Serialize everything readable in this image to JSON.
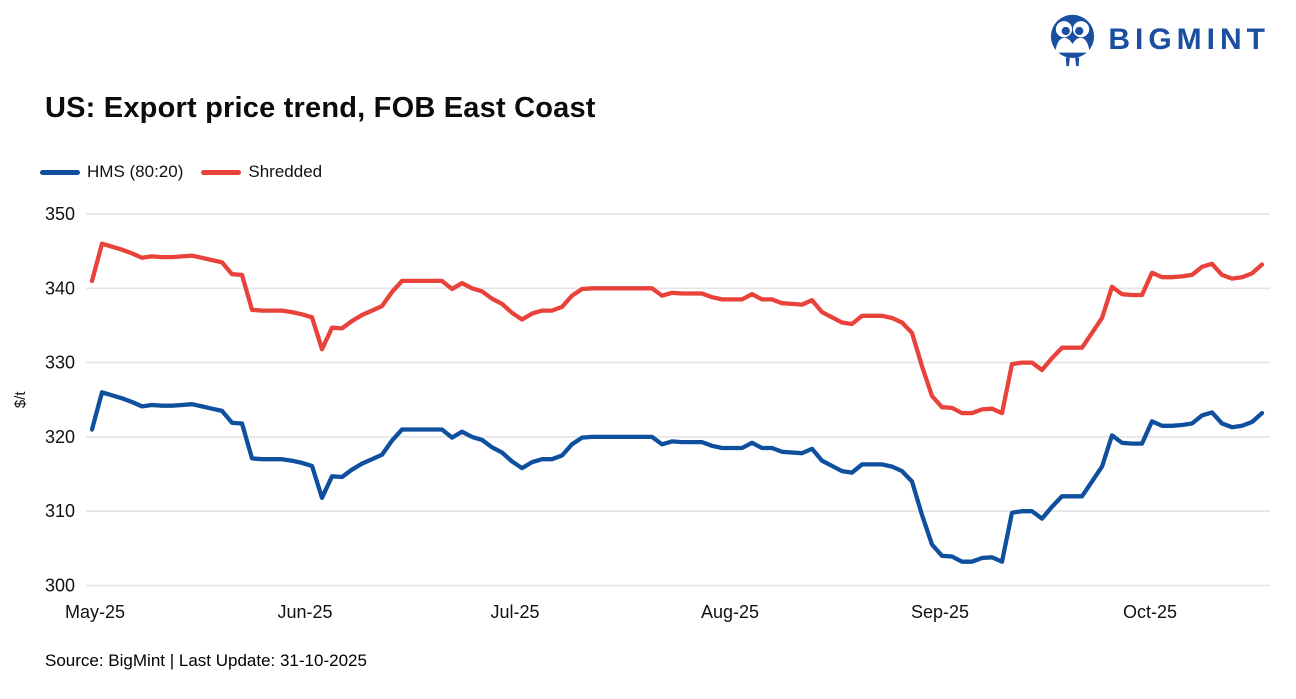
{
  "brand": {
    "name": "BIGMINT",
    "color": "#1a4fa0"
  },
  "page": {
    "title": "US: Export price trend, FOB East Coast",
    "source_note": "Source: BigMint | Last Update: 31-10-2025"
  },
  "legend": {
    "items": [
      {
        "label": "HMS (80:20)",
        "color": "#0f509e"
      },
      {
        "label": "Shredded",
        "color": "#e8423b"
      }
    ]
  },
  "chart_data": {
    "type": "line",
    "title": "US: Export price trend, FOB East Coast",
    "xlabel": "",
    "ylabel": "$/t",
    "ylim": [
      300,
      350
    ],
    "yticks": [
      300,
      310,
      320,
      330,
      340,
      350
    ],
    "x_tick_labels": [
      "May-25",
      "Jun-25",
      "Jul-25",
      "Aug-25",
      "Sep-25",
      "Oct-25"
    ],
    "x_tick_positions": [
      0.3,
      21.3,
      42.3,
      63.8,
      84.8,
      105.8
    ],
    "grid": "horizontal-only",
    "legend_position": "top-left",
    "gridline_color": "#e4e4e4",
    "series": [
      {
        "name": "HMS (80:20)",
        "color": "#0f509e",
        "values": [
          321,
          326,
          325.6,
          325.2,
          324.7,
          324.1,
          324.3,
          324.2,
          324.2,
          324.3,
          324.4,
          324.1,
          323.8,
          323.5,
          321.9,
          321.8,
          317.1,
          317,
          317,
          317,
          316.8,
          316.5,
          316.1,
          311.8,
          314.7,
          314.6,
          315.6,
          316.4,
          317,
          317.6,
          319.5,
          321,
          321,
          321,
          321,
          321,
          319.9,
          320.7,
          320,
          319.6,
          318.6,
          317.9,
          316.7,
          315.8,
          316.6,
          317,
          317,
          317.5,
          319,
          319.9,
          320,
          320,
          320,
          320,
          320,
          320,
          320,
          319,
          319.4,
          319.3,
          319.3,
          319.3,
          318.8,
          318.5,
          318.5,
          318.5,
          319.2,
          318.5,
          318.5,
          318,
          317.9,
          317.8,
          318.4,
          316.8,
          316.1,
          315.4,
          315.2,
          316.3,
          316.3,
          316.3,
          316,
          315.4,
          314,
          309.5,
          305.5,
          304,
          303.9,
          303.2,
          303.2,
          303.7,
          303.8,
          303.2,
          309.8,
          310,
          310,
          309,
          310.6,
          312,
          312,
          312,
          314,
          316,
          320.2,
          319.2,
          319.1,
          319.1,
          322.1,
          321.5,
          321.5,
          321.6,
          321.8,
          322.9,
          323.3,
          321.8,
          321.3,
          321.5,
          322,
          323.2
        ]
      },
      {
        "name": "Shredded",
        "color": "#e8423b",
        "values": [
          341,
          346,
          345.6,
          345.2,
          344.7,
          344.1,
          344.3,
          344.2,
          344.2,
          344.3,
          344.4,
          344.1,
          343.8,
          343.5,
          341.9,
          341.8,
          337.1,
          337,
          337,
          337,
          336.8,
          336.5,
          336.1,
          331.8,
          334.7,
          334.6,
          335.6,
          336.4,
          337,
          337.6,
          339.5,
          341,
          341,
          341,
          341,
          341,
          339.9,
          340.7,
          340,
          339.6,
          338.6,
          337.9,
          336.7,
          335.8,
          336.6,
          337,
          337,
          337.5,
          339,
          339.9,
          340,
          340,
          340,
          340,
          340,
          340,
          340,
          339,
          339.4,
          339.3,
          339.3,
          339.3,
          338.8,
          338.5,
          338.5,
          338.5,
          339.2,
          338.5,
          338.5,
          338,
          337.9,
          337.8,
          338.4,
          336.8,
          336.1,
          335.4,
          335.2,
          336.3,
          336.3,
          336.3,
          336,
          335.4,
          334,
          329.5,
          325.5,
          324,
          323.9,
          323.2,
          323.2,
          323.7,
          323.8,
          323.2,
          329.8,
          330,
          330,
          329,
          330.6,
          332,
          332,
          332,
          334,
          336,
          340.2,
          339.2,
          339.1,
          339.1,
          342.1,
          341.5,
          341.5,
          341.6,
          341.8,
          342.9,
          343.3,
          341.8,
          341.3,
          341.5,
          342,
          343.2
        ]
      }
    ]
  }
}
